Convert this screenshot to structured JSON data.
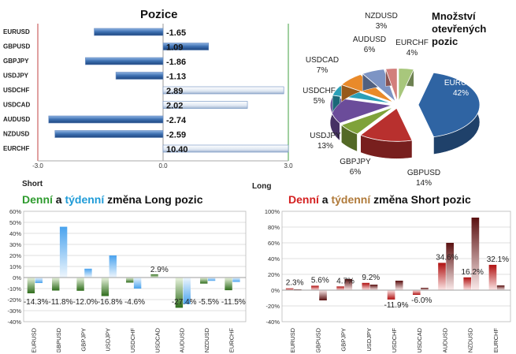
{
  "colors": {
    "long_word": "#2e9b2e",
    "weekly_long_word": "#1f9bd7",
    "short_word": "#d42020",
    "weekly_short_word": "#b07a3a",
    "bar_blue": "#3c6fb0",
    "long_daily": "#3f8a2f",
    "long_weekly": "#5aa8e8",
    "short_daily": "#c01818",
    "short_weekly": "#7a1a1a"
  },
  "headers": {
    "long_title": {
      "part1": "Denní",
      "part2": " a ",
      "part3": "týdenní",
      "part4": " změna Long pozic"
    },
    "short_title": {
      "part1": "Denní",
      "part2": " a ",
      "part3": "týdenní",
      "part4": " změna Short pozic"
    }
  },
  "chart_data": [
    {
      "type": "bar",
      "orientation": "horizontal",
      "title": "Pozice",
      "categories": [
        "EURUSD",
        "GBPUSD",
        "GBPJPY",
        "USDJPY",
        "USDCHF",
        "USDCAD",
        "AUDUSD",
        "NZDUSD",
        "EURCHF"
      ],
      "values": [
        -1.65,
        1.09,
        -1.86,
        -1.13,
        2.89,
        2.02,
        -2.74,
        -2.59,
        10.4
      ],
      "value_labels": [
        "-1.65",
        "1.09",
        "-1.86",
        "-1.13",
        "2.89",
        "2.02",
        "-2.74",
        "-2.59",
        "10.40"
      ],
      "xlim": [
        -3.0,
        3.0
      ],
      "xticks": [
        "-3.0",
        "0.0",
        "3.0"
      ],
      "left_label": "Short",
      "right_label": "Long"
    },
    {
      "type": "pie",
      "title": "Množství otevřených pozic",
      "slices": [
        {
          "label": "EURUSD",
          "pct": "42%",
          "value": 42,
          "color": "#2f64a3"
        },
        {
          "label": "GBPUSD",
          "pct": "14%",
          "value": 14,
          "color": "#b8302e"
        },
        {
          "label": "GBPJPY",
          "pct": "6%",
          "value": 6,
          "color": "#7fa23a"
        },
        {
          "label": "USDJPY",
          "pct": "13%",
          "value": 13,
          "color": "#6b4c9a"
        },
        {
          "label": "USDCHF",
          "pct": "5%",
          "value": 5,
          "color": "#2aa0b8"
        },
        {
          "label": "USDCAD",
          "pct": "7%",
          "value": 7,
          "color": "#e98a2a"
        },
        {
          "label": "AUDUSD",
          "pct": "6%",
          "value": 6,
          "color": "#7d94c4"
        },
        {
          "label": "NZDUSD",
          "pct": "3%",
          "value": 3,
          "color": "#d27f7c"
        },
        {
          "label": "EURCHF",
          "pct": "4%",
          "value": 4,
          "color": "#a8c77c"
        }
      ]
    },
    {
      "type": "bar",
      "title": "Denní a týdenní změna Long pozic",
      "categories": [
        "EURUSD",
        "GBPUSD",
        "GBPJPY",
        "USDJPY",
        "USDCHF",
        "USDCAD",
        "AUDUSD",
        "NZDUSD",
        "EURCHF"
      ],
      "series": [
        {
          "values": [
            -14.3,
            -11.8,
            -12.0,
            -16.8,
            -4.6,
            2.9,
            -27.4,
            -5.5,
            -11.5
          ]
        },
        {
          "values": [
            -5,
            46,
            8,
            20,
            -10,
            0,
            -24,
            -3,
            -4
          ]
        }
      ],
      "labels": [
        "-14.3%",
        "-11.8%",
        "-12.0%",
        "-16.8%",
        "-4.6%",
        "2.9%",
        "-27.4%",
        "-5.5%",
        "-11.5%"
      ],
      "ylim": [
        -40,
        60
      ],
      "yticks": [
        "60%",
        "50%",
        "40%",
        "30%",
        "20%",
        "10%",
        "0%",
        "-10%",
        "-20%",
        "-30%",
        "-40%"
      ]
    },
    {
      "type": "bar",
      "title": "Denní a týdenní změna Short pozic",
      "categories": [
        "EURUSD",
        "GBPUSD",
        "GBPJPY",
        "USDJPY",
        "USDCHF",
        "USDCAD",
        "AUDUSD",
        "NZDUSD",
        "EURCHF"
      ],
      "series": [
        {
          "values": [
            2.3,
            5.6,
            4.7,
            9.2,
            -11.9,
            -6.0,
            34.6,
            16.2,
            32.1
          ]
        },
        {
          "values": [
            1,
            -13,
            14,
            7,
            12,
            3,
            60,
            92,
            6
          ]
        }
      ],
      "labels": [
        "2.3%",
        "5.6%",
        "4.7%",
        "9.2%",
        "-11.9%",
        "-6.0%",
        "34.6%",
        "16.2%",
        "32.1%"
      ],
      "ylim": [
        -40,
        100
      ],
      "yticks": [
        "100%",
        "80%",
        "60%",
        "40%",
        "20%",
        "0%",
        "-20%",
        "-40%"
      ]
    }
  ]
}
